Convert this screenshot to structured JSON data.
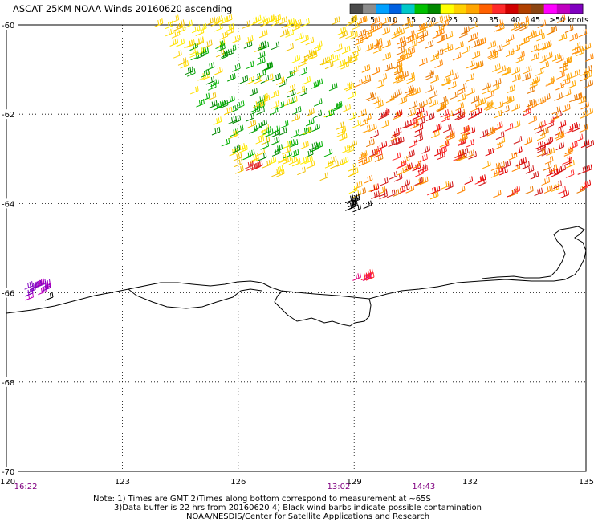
{
  "title": "ASCAT 25KM NOAA Winds 20160620 ascending",
  "legend": {
    "colors": [
      "#4a4a4a",
      "#8c8c8c",
      "#00a0ff",
      "#0060e0",
      "#00c8c8",
      "#00c000",
      "#008800",
      "#ffff00",
      "#ffd000",
      "#ffa500",
      "#ff6000",
      "#ff2a2a",
      "#d00000",
      "#b04000",
      "#8b4513",
      "#ff00ff",
      "#c000c0",
      "#8000c0"
    ],
    "labels": [
      "0",
      "5",
      "10",
      "15",
      "20",
      "25",
      "30",
      "35",
      "40",
      "45",
      ">50 knots"
    ]
  },
  "chart_data": {
    "type": "wind_barb_map",
    "lon_range": [
      120,
      135
    ],
    "lat_range": [
      -70,
      -60
    ],
    "lon_ticks": [
      "120",
      "123",
      "126",
      "129",
      "132",
      "135"
    ],
    "lat_ticks": [
      "-60",
      "-62",
      "-64",
      "-66",
      "-68",
      "-70"
    ],
    "times": [
      {
        "label": "16:22",
        "lon": 120.5
      },
      {
        "label": "13:02",
        "lon": 128.6
      },
      {
        "label": "14:43",
        "lon": 130.8
      }
    ],
    "wind_regions": [
      {
        "description": "light green winds",
        "knots": "15-20",
        "lon": [
          125.5,
          128.5
        ],
        "lat": [
          -63.5,
          -61
        ]
      },
      {
        "description": "moderate yellow winds",
        "knots": "20-25",
        "lon": [
          124,
          130
        ],
        "lat": [
          -64,
          -60
        ]
      },
      {
        "description": "orange winds",
        "knots": "25-30",
        "lon": [
          129,
          135
        ],
        "lat": [
          -64,
          -60
        ]
      },
      {
        "description": "strong red winds",
        "knots": "30-40",
        "lon": [
          129.5,
          134
        ],
        "lat": [
          -64,
          -62.5
        ]
      },
      {
        "description": "magenta winds",
        "knots": "45-50",
        "lon": [
          120.5,
          121
        ],
        "lat": [
          -66.5,
          -66.1
        ]
      }
    ]
  },
  "footer": {
    "line1": "Note: 1) Times are GMT 2)Times along bottom correspond to measurement at ~65S",
    "line2": "3)Data buffer is 22 hrs from 20160620 4) Black wind barbs indicate possible contamination",
    "line3": "NOAA/NESDIS/Center for Satellite Applications and Research"
  }
}
